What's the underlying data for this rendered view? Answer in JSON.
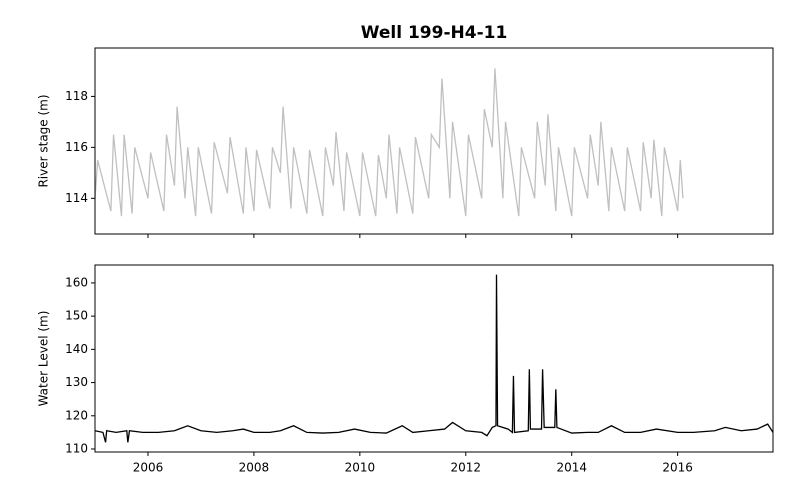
{
  "chart_data": [
    {
      "type": "line",
      "title": "Well 199-H4-11",
      "ylabel": "River stage (m)",
      "color": "#c0c0c0",
      "x": [
        2005.0,
        2005.05,
        2005.3,
        2005.35,
        2005.5,
        2005.55,
        2005.7,
        2005.75,
        2006.0,
        2006.05,
        2006.3,
        2006.35,
        2006.5,
        2006.55,
        2006.7,
        2006.75,
        2006.9,
        2006.95,
        2007.2,
        2007.25,
        2007.5,
        2007.55,
        2007.8,
        2007.85,
        2008.0,
        2008.05,
        2008.3,
        2008.35,
        2008.5,
        2008.55,
        2008.7,
        2008.75,
        2009.0,
        2009.05,
        2009.3,
        2009.35,
        2009.5,
        2009.55,
        2009.7,
        2009.75,
        2010.0,
        2010.05,
        2010.3,
        2010.35,
        2010.5,
        2010.55,
        2010.7,
        2010.75,
        2011.0,
        2011.05,
        2011.3,
        2011.35,
        2011.5,
        2011.55,
        2011.7,
        2011.75,
        2012.0,
        2012.05,
        2012.3,
        2012.35,
        2012.5,
        2012.55,
        2012.7,
        2012.75,
        2013.0,
        2013.05,
        2013.3,
        2013.35,
        2013.5,
        2013.55,
        2013.7,
        2013.75,
        2014.0,
        2014.05,
        2014.3,
        2014.35,
        2014.5,
        2014.55,
        2014.7,
        2014.75,
        2015.0,
        2015.05,
        2015.3,
        2015.35,
        2015.5,
        2015.55,
        2015.7,
        2015.75,
        2016.0,
        2016.05,
        2016.1
      ],
      "values": [
        114.0,
        115.5,
        113.5,
        116.5,
        113.3,
        116.5,
        113.4,
        116.0,
        114.0,
        115.8,
        113.5,
        116.5,
        114.5,
        117.6,
        114.0,
        116.0,
        113.3,
        116.0,
        113.4,
        116.2,
        114.2,
        116.4,
        113.4,
        116.0,
        113.5,
        115.9,
        113.6,
        116.0,
        115.0,
        117.6,
        113.6,
        116.0,
        113.4,
        115.9,
        113.3,
        116.0,
        114.5,
        116.6,
        113.5,
        115.8,
        113.3,
        115.8,
        113.3,
        115.7,
        114.0,
        116.5,
        113.4,
        116.0,
        113.4,
        116.4,
        114.0,
        116.5,
        116.0,
        118.7,
        114.0,
        117.0,
        113.3,
        116.5,
        114.0,
        117.5,
        116.0,
        119.1,
        114.0,
        117.0,
        113.3,
        116.0,
        114.0,
        117.0,
        114.5,
        117.3,
        113.5,
        116.0,
        113.3,
        116.0,
        114.0,
        116.5,
        114.5,
        117.0,
        113.5,
        116.0,
        113.5,
        116.0,
        113.5,
        116.2,
        114.0,
        116.3,
        113.3,
        116.0,
        113.5,
        115.5,
        114.0
      ],
      "xlim": [
        2005.0,
        2017.8
      ],
      "xticks": [
        2006,
        2008,
        2010,
        2012,
        2014,
        2016
      ],
      "ylim": [
        112.6,
        119.9
      ],
      "yticks": [
        114,
        116,
        118
      ]
    },
    {
      "type": "line",
      "ylabel": "Water Level (m)",
      "color": "#000000",
      "x": [
        2005.0,
        2005.15,
        2005.2,
        2005.22,
        2005.4,
        2005.6,
        2005.62,
        2005.65,
        2005.9,
        2006.2,
        2006.5,
        2006.75,
        2007.0,
        2007.3,
        2007.6,
        2007.8,
        2008.0,
        2008.3,
        2008.5,
        2008.75,
        2009.0,
        2009.3,
        2009.6,
        2009.9,
        2010.2,
        2010.5,
        2010.8,
        2011.0,
        2011.3,
        2011.6,
        2011.75,
        2012.0,
        2012.3,
        2012.4,
        2012.5,
        2012.57,
        2012.58,
        2012.6,
        2012.8,
        2012.88,
        2012.9,
        2012.92,
        2013.18,
        2013.2,
        2013.22,
        2013.43,
        2013.45,
        2013.48,
        2013.68,
        2013.7,
        2013.72,
        2014.0,
        2014.3,
        2014.5,
        2014.75,
        2015.0,
        2015.3,
        2015.6,
        2016.0,
        2016.3,
        2016.7,
        2016.9,
        2017.2,
        2017.5,
        2017.7,
        2017.8
      ],
      "values": [
        115.5,
        115,
        112,
        115.5,
        115,
        115.5,
        112,
        115.5,
        115,
        115,
        115.5,
        117,
        115.5,
        115,
        115.5,
        116,
        115,
        115,
        115.5,
        117,
        115,
        114.8,
        115,
        116,
        115,
        114.8,
        117,
        115,
        115.5,
        116,
        118,
        115.5,
        115,
        114,
        116.5,
        117,
        162.5,
        117,
        116,
        115,
        132,
        115,
        115.5,
        134,
        116,
        116,
        134,
        116.5,
        116.5,
        128,
        116.5,
        114.8,
        115,
        115,
        117,
        115,
        115,
        116,
        115,
        115,
        115.5,
        116.5,
        115.5,
        116,
        117.5,
        115
      ],
      "xlim": [
        2005.0,
        2017.8
      ],
      "xticks": [
        2006,
        2008,
        2010,
        2012,
        2014,
        2016
      ],
      "ylim": [
        109.1,
        165.4
      ],
      "yticks": [
        110,
        120,
        130,
        140,
        150,
        160
      ]
    }
  ]
}
